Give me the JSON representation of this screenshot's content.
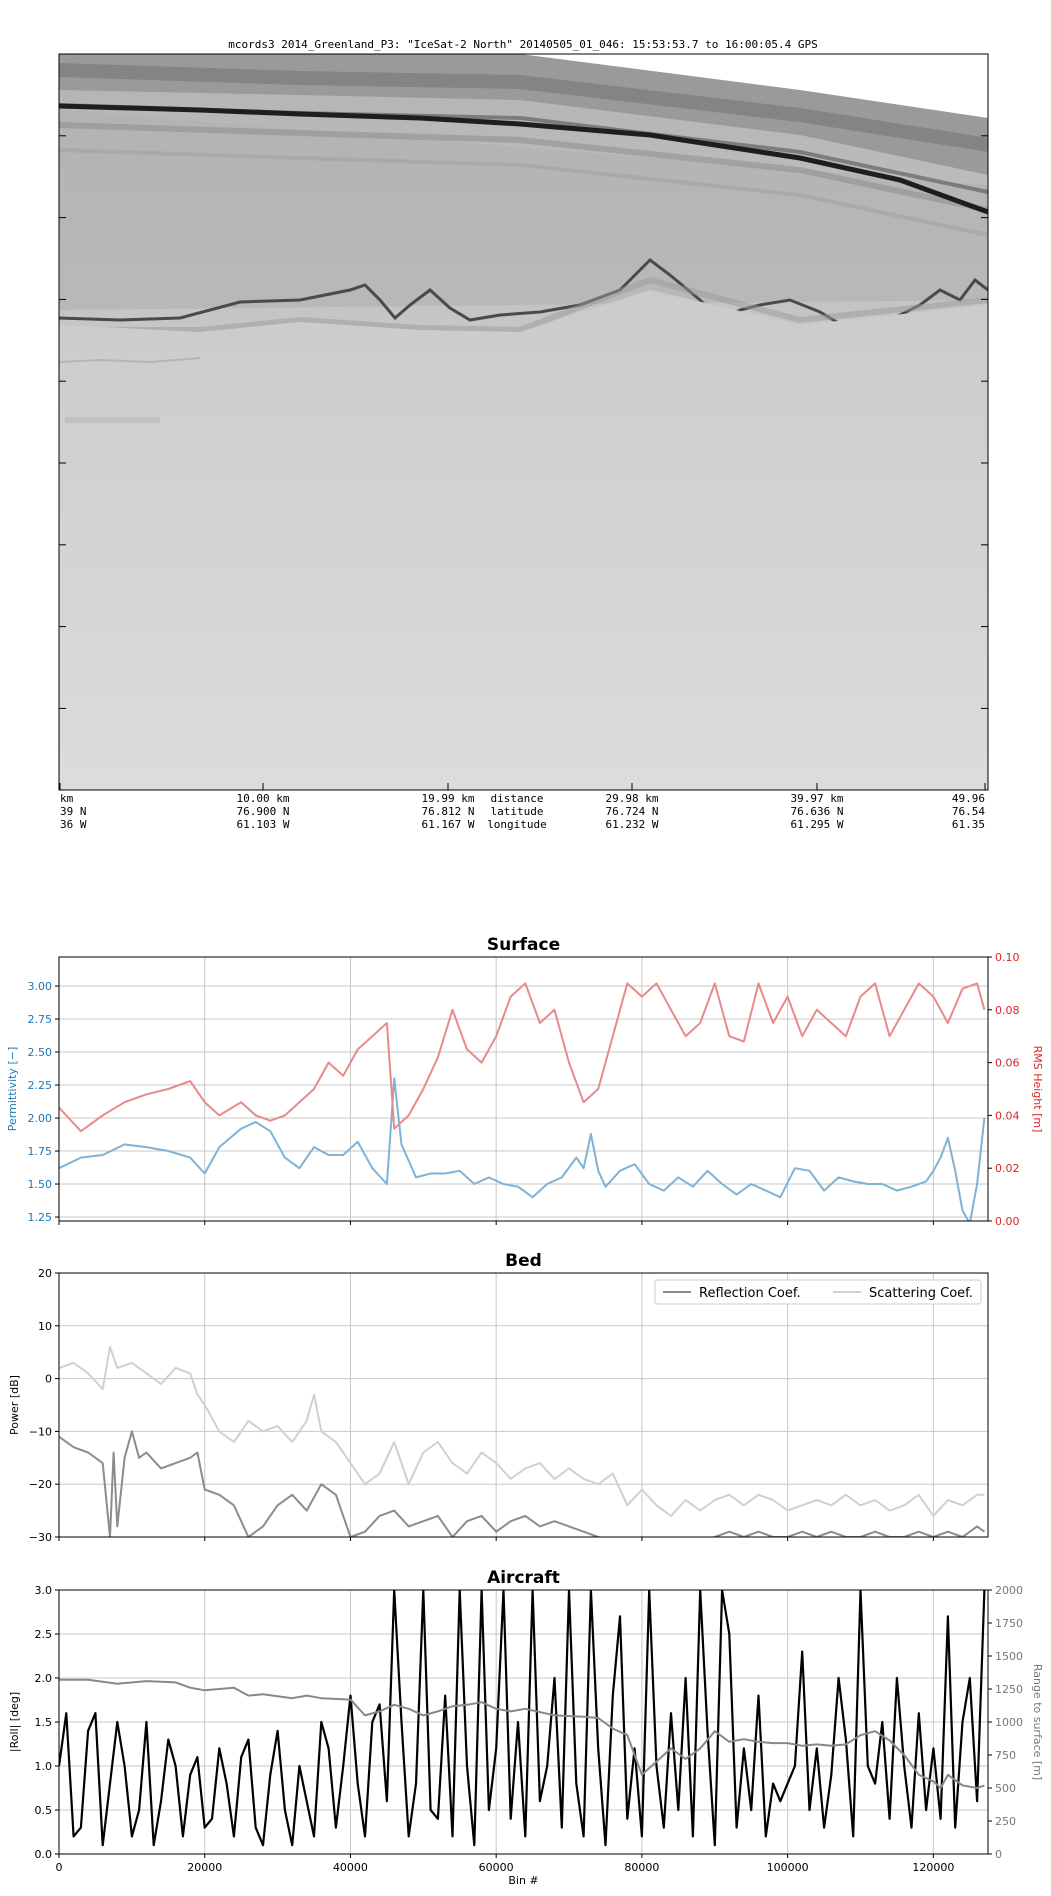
{
  "radargram": {
    "title": "mcords3 2014_Greenland_P3: \"IceSat-2 North\"  20140505_01_046: 15:53:53.7 to 16:00:05.4 GPS",
    "row_labels": [
      "distance",
      "latitude",
      "longitude"
    ],
    "ticks": [
      {
        "dist": "km",
        "lat": "39 N",
        "lon": "36 W"
      },
      {
        "dist": "10.00 km",
        "lat": "76.900 N",
        "lon": "61.103 W"
      },
      {
        "dist": "19.99 km",
        "lat": "76.812 N",
        "lon": "61.167 W"
      },
      {
        "dist": "29.98 km",
        "lat": "76.724 N",
        "lon": "61.232 W"
      },
      {
        "dist": "39.97 km",
        "lat": "76.636 N",
        "lon": "61.295 W"
      },
      {
        "dist": "49.96",
        "lat": "76.54",
        "lon": "61.35"
      }
    ]
  },
  "chart_data": [
    {
      "type": "line",
      "title": "Surface",
      "xlim": [
        0,
        127500
      ],
      "ylabel_left": "Permittivity [−]",
      "ylabel_right": "RMS Height [m]",
      "ylim_left": [
        1.22,
        3.22
      ],
      "ylim_right": [
        0,
        0.1
      ],
      "yticks_left": [
        "1.25",
        "1.50",
        "1.75",
        "2.00",
        "2.25",
        "2.50",
        "2.75",
        "3.00"
      ],
      "yticks_right": [
        "0.00",
        "0.02",
        "0.04",
        "0.06",
        "0.08",
        "0.10"
      ],
      "grid": true,
      "series": [
        {
          "axis": "left",
          "color": "#7fb2d5",
          "x": [
            0,
            3000,
            6000,
            9000,
            12000,
            15000,
            18000,
            20000,
            22000,
            25000,
            27000,
            29000,
            31000,
            33000,
            35000,
            37000,
            39000,
            41000,
            43000,
            45000,
            46000,
            47000,
            49000,
            51000,
            53000,
            55000,
            57000,
            59000,
            61000,
            63000,
            65000,
            67000,
            69000,
            71000,
            72000,
            73000,
            74000,
            75000,
            77000,
            79000,
            81000,
            83000,
            85000,
            87000,
            89000,
            91000,
            93000,
            95000,
            97000,
            99000,
            101000,
            103000,
            105000,
            107000,
            109000,
            111000,
            113000,
            115000,
            117000,
            119000,
            120000,
            121000,
            122000,
            123000,
            124000,
            125000,
            126000,
            127000
          ],
          "y": [
            1.62,
            1.7,
            1.72,
            1.8,
            1.78,
            1.75,
            1.7,
            1.58,
            1.78,
            1.92,
            1.97,
            1.9,
            1.7,
            1.62,
            1.78,
            1.72,
            1.72,
            1.82,
            1.62,
            1.5,
            2.3,
            1.8,
            1.55,
            1.58,
            1.58,
            1.6,
            1.5,
            1.55,
            1.5,
            1.48,
            1.4,
            1.5,
            1.55,
            1.7,
            1.62,
            1.88,
            1.6,
            1.48,
            1.6,
            1.65,
            1.5,
            1.45,
            1.55,
            1.48,
            1.6,
            1.5,
            1.42,
            1.5,
            1.45,
            1.4,
            1.62,
            1.6,
            1.45,
            1.55,
            1.52,
            1.5,
            1.5,
            1.45,
            1.48,
            1.52,
            1.6,
            1.7,
            1.85,
            1.6,
            1.3,
            1.2,
            1.5,
            2.0
          ]
        },
        {
          "axis": "right",
          "color": "#e88a8a",
          "x": [
            0,
            3000,
            6000,
            9000,
            12000,
            15000,
            18000,
            20000,
            22000,
            25000,
            27000,
            29000,
            31000,
            33000,
            35000,
            37000,
            39000,
            41000,
            43000,
            45000,
            46000,
            48000,
            50000,
            52000,
            54000,
            56000,
            58000,
            60000,
            62000,
            64000,
            66000,
            68000,
            70000,
            72000,
            74000,
            76000,
            78000,
            80000,
            82000,
            84000,
            86000,
            88000,
            90000,
            92000,
            94000,
            96000,
            98000,
            100000,
            102000,
            104000,
            106000,
            108000,
            110000,
            112000,
            114000,
            116000,
            118000,
            120000,
            122000,
            124000,
            126000,
            127000
          ],
          "y": [
            0.043,
            0.034,
            0.04,
            0.045,
            0.048,
            0.05,
            0.053,
            0.045,
            0.04,
            0.045,
            0.04,
            0.038,
            0.04,
            0.045,
            0.05,
            0.06,
            0.055,
            0.065,
            0.07,
            0.075,
            0.035,
            0.04,
            0.05,
            0.062,
            0.08,
            0.065,
            0.06,
            0.07,
            0.085,
            0.09,
            0.075,
            0.08,
            0.06,
            0.045,
            0.05,
            0.07,
            0.09,
            0.085,
            0.09,
            0.08,
            0.07,
            0.075,
            0.09,
            0.07,
            0.068,
            0.09,
            0.075,
            0.085,
            0.07,
            0.08,
            0.075,
            0.07,
            0.085,
            0.09,
            0.07,
            0.08,
            0.09,
            0.085,
            0.075,
            0.088,
            0.09,
            0.08
          ]
        }
      ]
    },
    {
      "type": "line",
      "title": "Bed",
      "xlim": [
        0,
        127500
      ],
      "ylabel": "Power [dB]",
      "ylim": [
        -30,
        20
      ],
      "yticks": [
        "−30",
        "−20",
        "−10",
        "0",
        "10",
        "20"
      ],
      "grid": true,
      "legend": "top-right",
      "series": [
        {
          "name": "Reflection Coef.",
          "color": "#8c8c8c",
          "x": [
            0,
            2000,
            4000,
            6000,
            7000,
            7500,
            8000,
            9000,
            10000,
            11000,
            12000,
            14000,
            16000,
            18000,
            19000,
            20000,
            22000,
            24000,
            26000,
            28000,
            30000,
            32000,
            34000,
            36000,
            38000,
            40000,
            42000,
            44000,
            46000,
            48000,
            50000,
            52000,
            54000,
            56000,
            58000,
            60000,
            62000,
            64000,
            66000,
            68000,
            70000,
            72000,
            74000,
            76000,
            78000,
            80000,
            82000,
            84000,
            86000,
            88000,
            90000,
            92000,
            94000,
            96000,
            98000,
            100000,
            102000,
            104000,
            106000,
            108000,
            110000,
            112000,
            114000,
            116000,
            118000,
            120000,
            122000,
            124000,
            126000,
            127000
          ],
          "y": [
            -11,
            -13,
            -14,
            -16,
            -30,
            -14,
            -28,
            -15,
            -10,
            -15,
            -14,
            -17,
            -16,
            -15,
            -14,
            -21,
            -22,
            -24,
            -30,
            -28,
            -24,
            -22,
            -25,
            -20,
            -22,
            -30,
            -29,
            -26,
            -25,
            -28,
            -27,
            -26,
            -30,
            -27,
            -26,
            -29,
            -27,
            -26,
            -28,
            -27,
            -28,
            -29,
            -30,
            -31,
            -32,
            -32,
            -32,
            -32,
            -31,
            -31,
            -30,
            -29,
            -30,
            -29,
            -30,
            -30,
            -29,
            -30,
            -29,
            -30,
            -30,
            -29,
            -30,
            -30,
            -29,
            -30,
            -29,
            -30,
            -28,
            -29
          ]
        },
        {
          "name": "Scattering Coef.",
          "color": "#d0d0d0",
          "x": [
            0,
            2000,
            4000,
            6000,
            7000,
            8000,
            10000,
            12000,
            14000,
            16000,
            18000,
            19000,
            20000,
            22000,
            24000,
            26000,
            28000,
            30000,
            32000,
            34000,
            35000,
            36000,
            38000,
            40000,
            42000,
            44000,
            46000,
            48000,
            50000,
            52000,
            54000,
            56000,
            58000,
            60000,
            62000,
            64000,
            66000,
            68000,
            70000,
            72000,
            74000,
            76000,
            78000,
            80000,
            82000,
            84000,
            86000,
            88000,
            90000,
            92000,
            94000,
            96000,
            98000,
            100000,
            102000,
            104000,
            106000,
            108000,
            110000,
            112000,
            114000,
            116000,
            118000,
            120000,
            122000,
            124000,
            126000,
            127000
          ],
          "y": [
            2,
            3,
            1,
            -2,
            6,
            2,
            3,
            1,
            -1,
            2,
            1,
            -3,
            -5,
            -10,
            -12,
            -8,
            -10,
            -9,
            -12,
            -8,
            -3,
            -10,
            -12,
            -16,
            -20,
            -18,
            -12,
            -20,
            -14,
            -12,
            -16,
            -18,
            -14,
            -16,
            -19,
            -17,
            -16,
            -19,
            -17,
            -19,
            -20,
            -18,
            -24,
            -21,
            -24,
            -26,
            -23,
            -25,
            -23,
            -22,
            -24,
            -22,
            -23,
            -25,
            -24,
            -23,
            -24,
            -22,
            -24,
            -23,
            -25,
            -24,
            -22,
            -26,
            -23,
            -24,
            -22,
            -22
          ]
        }
      ]
    },
    {
      "type": "line",
      "title": "Aircraft",
      "xlabel": "Bin #",
      "xlim": [
        0,
        127500
      ],
      "xticks": [
        "0",
        "20000",
        "40000",
        "60000",
        "80000",
        "100000",
        "120000"
      ],
      "ylabel_left": "|Roll| [deg]",
      "ylabel_right": "Range to surface [m]",
      "ylim_left": [
        0,
        3.0
      ],
      "ylim_right": [
        0,
        2000
      ],
      "yticks_left": [
        "0.0",
        "0.5",
        "1.0",
        "1.5",
        "2.0",
        "2.5",
        "3.0"
      ],
      "yticks_right": [
        "0",
        "250",
        "500",
        "750",
        "1000",
        "1250",
        "1500",
        "1750",
        "2000"
      ],
      "grid": true,
      "series": [
        {
          "axis": "left",
          "color": "#000000",
          "x": [
            0,
            1000,
            2000,
            3000,
            4000,
            5000,
            6000,
            7000,
            8000,
            9000,
            10000,
            11000,
            12000,
            13000,
            14000,
            15000,
            16000,
            17000,
            18000,
            19000,
            20000,
            21000,
            22000,
            23000,
            24000,
            25000,
            26000,
            27000,
            28000,
            29000,
            30000,
            31000,
            32000,
            33000,
            34000,
            35000,
            36000,
            37000,
            38000,
            39000,
            40000,
            41000,
            42000,
            43000,
            44000,
            45000,
            46000,
            47000,
            48000,
            49000,
            50000,
            51000,
            52000,
            53000,
            54000,
            55000,
            56000,
            57000,
            58000,
            59000,
            60000,
            61000,
            62000,
            63000,
            64000,
            65000,
            66000,
            67000,
            68000,
            69000,
            70000,
            71000,
            72000,
            73000,
            74000,
            75000,
            76000,
            77000,
            78000,
            79000,
            80000,
            81000,
            82000,
            83000,
            84000,
            85000,
            86000,
            87000,
            88000,
            89000,
            90000,
            91000,
            92000,
            93000,
            94000,
            95000,
            96000,
            97000,
            98000,
            99000,
            100000,
            101000,
            102000,
            103000,
            104000,
            105000,
            106000,
            107000,
            108000,
            109000,
            110000,
            111000,
            112000,
            113000,
            114000,
            115000,
            116000,
            117000,
            118000,
            119000,
            120000,
            121000,
            122000,
            123000,
            124000,
            125000,
            126000,
            127000
          ],
          "y": [
            1.0,
            1.6,
            0.2,
            0.3,
            1.4,
            1.6,
            0.1,
            0.8,
            1.5,
            1.0,
            0.2,
            0.5,
            1.5,
            0.1,
            0.6,
            1.3,
            1.0,
            0.2,
            0.9,
            1.1,
            0.3,
            0.4,
            1.2,
            0.8,
            0.2,
            1.1,
            1.3,
            0.3,
            0.1,
            0.9,
            1.4,
            0.5,
            0.1,
            1.0,
            0.6,
            0.2,
            1.5,
            1.2,
            0.3,
            1.0,
            1.8,
            0.8,
            0.2,
            1.5,
            1.7,
            0.6,
            3.0,
            1.5,
            0.2,
            0.8,
            3.0,
            0.5,
            0.4,
            1.8,
            0.2,
            3.0,
            1.0,
            0.1,
            3.0,
            0.5,
            1.2,
            3.0,
            0.4,
            1.5,
            0.2,
            3.0,
            0.6,
            1.0,
            2.0,
            0.3,
            3.0,
            0.8,
            0.2,
            3.0,
            1.2,
            0.1,
            1.8,
            2.7,
            0.4,
            1.2,
            0.2,
            3.0,
            1.0,
            0.3,
            1.6,
            0.5,
            2.0,
            0.2,
            3.0,
            1.4,
            0.1,
            3.0,
            2.5,
            0.3,
            1.2,
            0.5,
            1.8,
            0.2,
            0.8,
            0.6,
            0.8,
            1.0,
            2.3,
            0.5,
            1.2,
            0.3,
            0.9,
            2.0,
            1.3,
            0.2,
            3.0,
            1.0,
            0.8,
            1.5,
            0.4,
            2.0,
            1.0,
            0.3,
            1.6,
            0.5,
            1.2,
            0.4,
            2.7,
            0.3,
            1.5,
            2.0,
            0.6,
            3.0
          ]
        },
        {
          "axis": "right",
          "color": "#888888",
          "x": [
            0,
            4000,
            8000,
            12000,
            16000,
            18000,
            20000,
            24000,
            26000,
            28000,
            32000,
            34000,
            36000,
            40000,
            42000,
            44000,
            46000,
            48000,
            50000,
            52000,
            54000,
            56000,
            58000,
            60000,
            62000,
            64000,
            68000,
            72000,
            74000,
            76000,
            78000,
            80000,
            82000,
            84000,
            86000,
            88000,
            90000,
            92000,
            94000,
            96000,
            98000,
            100000,
            102000,
            104000,
            106000,
            108000,
            110000,
            112000,
            114000,
            116000,
            118000,
            120000,
            121000,
            122000,
            124000,
            126000,
            127000
          ],
          "y": [
            1320,
            1320,
            1290,
            1310,
            1300,
            1260,
            1240,
            1260,
            1200,
            1210,
            1180,
            1200,
            1180,
            1170,
            1050,
            1080,
            1130,
            1100,
            1050,
            1080,
            1120,
            1130,
            1150,
            1100,
            1080,
            1100,
            1050,
            1040,
            1030,
            950,
            900,
            600,
            700,
            800,
            720,
            800,
            930,
            850,
            870,
            850,
            840,
            840,
            820,
            830,
            820,
            830,
            900,
            930,
            860,
            750,
            600,
            550,
            500,
            600,
            520,
            500,
            520
          ]
        }
      ]
    }
  ]
}
